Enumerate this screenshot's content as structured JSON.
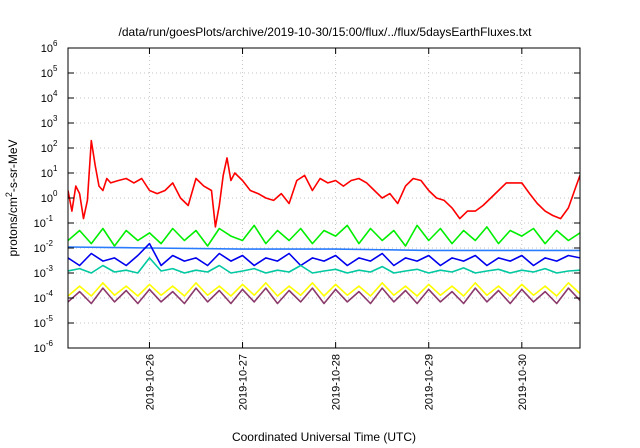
{
  "chart_data": {
    "type": "line",
    "title": "/data/run/goesPlots/archive/2019-10-30/15:00/flux/../flux/5daysEarthFluxes.txt",
    "xlabel": "Coordinated Universal Time (UTC)",
    "ylabel": {
      "prefix": "protons/cm",
      "sup": "2",
      "suffix": "-s-sr-MeV"
    },
    "x_range": [
      "2019-10-25T03:00",
      "2019-10-30T15:00"
    ],
    "x_ticks": [
      {
        "date": "2019-10-26",
        "label": "2019-10-26"
      },
      {
        "date": "2019-10-27",
        "label": "2019-10-27"
      },
      {
        "date": "2019-10-28",
        "label": "2019-10-28"
      },
      {
        "date": "2019-10-29",
        "label": "2019-10-29"
      },
      {
        "date": "2019-10-30",
        "label": "2019-10-30"
      }
    ],
    "y_scale": "log",
    "y_range": [
      1e-06,
      1000000.0
    ],
    "y_ticks": [
      {
        "base": "10",
        "exp": "6"
      },
      {
        "base": "10",
        "exp": "5"
      },
      {
        "base": "10",
        "exp": "4"
      },
      {
        "base": "10",
        "exp": "3"
      },
      {
        "base": "10",
        "exp": "2"
      },
      {
        "base": "10",
        "exp": "1"
      },
      {
        "base": "10",
        "exp": "0"
      },
      {
        "base": "10",
        "exp": "-1"
      },
      {
        "base": "10",
        "exp": "-2"
      },
      {
        "base": "10",
        "exp": "-3"
      },
      {
        "base": "10",
        "exp": "-4"
      },
      {
        "base": "10",
        "exp": "-5"
      },
      {
        "base": "10",
        "exp": "-6"
      }
    ],
    "grid": true,
    "series": [
      {
        "color": "#ff0000",
        "x": [
          "2019-10-25T03:00",
          "2019-10-25T04:00",
          "2019-10-25T05:00",
          "2019-10-25T06:00",
          "2019-10-25T07:00",
          "2019-10-25T08:00",
          "2019-10-25T09:00",
          "2019-10-25T10:00",
          "2019-10-25T11:00",
          "2019-10-25T12:00",
          "2019-10-25T13:00",
          "2019-10-25T14:00",
          "2019-10-25T16:00",
          "2019-10-25T18:00",
          "2019-10-25T20:00",
          "2019-10-25T22:00",
          "2019-10-26T00:00",
          "2019-10-26T02:00",
          "2019-10-26T04:00",
          "2019-10-26T06:00",
          "2019-10-26T08:00",
          "2019-10-26T10:00",
          "2019-10-26T12:00",
          "2019-10-26T14:00",
          "2019-10-26T16:00",
          "2019-10-26T17:00",
          "2019-10-26T18:00",
          "2019-10-26T19:00",
          "2019-10-26T20:00",
          "2019-10-26T21:00",
          "2019-10-26T22:00",
          "2019-10-27T00:00",
          "2019-10-27T02:00",
          "2019-10-27T04:00",
          "2019-10-27T06:00",
          "2019-10-27T08:00",
          "2019-10-27T10:00",
          "2019-10-27T12:00",
          "2019-10-27T14:00",
          "2019-10-27T16:00",
          "2019-10-27T18:00",
          "2019-10-27T20:00",
          "2019-10-27T22:00",
          "2019-10-28T00:00",
          "2019-10-28T02:00",
          "2019-10-28T04:00",
          "2019-10-28T06:00",
          "2019-10-28T08:00",
          "2019-10-28T10:00",
          "2019-10-28T12:00",
          "2019-10-28T14:00",
          "2019-10-28T16:00",
          "2019-10-28T18:00",
          "2019-10-28T20:00",
          "2019-10-28T22:00",
          "2019-10-29T00:00",
          "2019-10-29T02:00",
          "2019-10-29T04:00",
          "2019-10-29T06:00",
          "2019-10-29T08:00",
          "2019-10-29T10:00",
          "2019-10-29T12:00",
          "2019-10-29T14:00",
          "2019-10-29T16:00",
          "2019-10-29T18:00",
          "2019-10-29T20:00",
          "2019-10-29T22:00",
          "2019-10-30T00:00",
          "2019-10-30T02:00",
          "2019-10-30T04:00",
          "2019-10-30T06:00",
          "2019-10-30T08:00",
          "2019-10-30T10:00",
          "2019-10-30T12:00",
          "2019-10-30T14:00",
          "2019-10-30T15:00"
        ],
        "y": [
          2,
          0.3,
          3,
          1.5,
          0.15,
          0.8,
          200,
          20,
          3,
          2,
          6,
          4,
          5,
          6,
          4,
          6,
          2,
          1.5,
          2,
          4,
          1,
          0.5,
          6,
          3,
          2,
          0.07,
          0.5,
          8,
          40,
          5,
          10,
          5,
          2,
          1.5,
          1,
          0.8,
          1.5,
          0.6,
          5,
          8,
          2,
          6,
          4,
          5,
          3,
          5,
          6,
          4,
          2,
          1,
          1.5,
          0.6,
          3,
          6,
          5,
          2,
          1,
          0.8,
          0.4,
          0.15,
          0.3,
          0.3,
          0.5,
          1,
          2,
          4,
          4,
          4,
          1.5,
          0.6,
          0.3,
          0.2,
          0.15,
          0.4,
          3,
          8
        ]
      },
      {
        "color": "#00ee00",
        "x": [
          "2019-10-25T03:00",
          "2019-10-25T06:00",
          "2019-10-25T09:00",
          "2019-10-25T12:00",
          "2019-10-25T15:00",
          "2019-10-25T18:00",
          "2019-10-25T21:00",
          "2019-10-26T00:00",
          "2019-10-26T03:00",
          "2019-10-26T06:00",
          "2019-10-26T09:00",
          "2019-10-26T12:00",
          "2019-10-26T15:00",
          "2019-10-26T18:00",
          "2019-10-26T21:00",
          "2019-10-27T00:00",
          "2019-10-27T03:00",
          "2019-10-27T06:00",
          "2019-10-27T09:00",
          "2019-10-27T12:00",
          "2019-10-27T15:00",
          "2019-10-27T18:00",
          "2019-10-27T21:00",
          "2019-10-28T00:00",
          "2019-10-28T03:00",
          "2019-10-28T06:00",
          "2019-10-28T09:00",
          "2019-10-28T12:00",
          "2019-10-28T15:00",
          "2019-10-28T18:00",
          "2019-10-28T21:00",
          "2019-10-29T00:00",
          "2019-10-29T03:00",
          "2019-10-29T06:00",
          "2019-10-29T09:00",
          "2019-10-29T12:00",
          "2019-10-29T15:00",
          "2019-10-29T18:00",
          "2019-10-29T21:00",
          "2019-10-30T00:00",
          "2019-10-30T03:00",
          "2019-10-30T06:00",
          "2019-10-30T09:00",
          "2019-10-30T12:00",
          "2019-10-30T15:00"
        ],
        "y": [
          0.02,
          0.05,
          0.015,
          0.06,
          0.012,
          0.05,
          0.02,
          0.04,
          0.015,
          0.06,
          0.02,
          0.05,
          0.012,
          0.06,
          0.03,
          0.02,
          0.08,
          0.015,
          0.05,
          0.02,
          0.06,
          0.015,
          0.05,
          0.03,
          0.08,
          0.015,
          0.06,
          0.02,
          0.05,
          0.012,
          0.08,
          0.02,
          0.06,
          0.015,
          0.05,
          0.02,
          0.07,
          0.015,
          0.05,
          0.03,
          0.06,
          0.015,
          0.05,
          0.02,
          0.04
        ]
      },
      {
        "color": "#2a7cff",
        "x": [
          "2019-10-25T03:00",
          "2019-10-26T00:00",
          "2019-10-27T00:00",
          "2019-10-28T00:00",
          "2019-10-29T00:00",
          "2019-10-30T00:00",
          "2019-10-30T15:00"
        ],
        "y": [
          0.011,
          0.01,
          0.009,
          0.009,
          0.008,
          0.008,
          0.008
        ]
      },
      {
        "color": "#0000ee",
        "x": [
          "2019-10-25T03:00",
          "2019-10-25T06:00",
          "2019-10-25T09:00",
          "2019-10-25T12:00",
          "2019-10-25T15:00",
          "2019-10-25T18:00",
          "2019-10-25T21:00",
          "2019-10-26T00:00",
          "2019-10-26T03:00",
          "2019-10-26T06:00",
          "2019-10-26T09:00",
          "2019-10-26T12:00",
          "2019-10-26T15:00",
          "2019-10-26T18:00",
          "2019-10-26T21:00",
          "2019-10-27T00:00",
          "2019-10-27T03:00",
          "2019-10-27T06:00",
          "2019-10-27T09:00",
          "2019-10-27T12:00",
          "2019-10-27T15:00",
          "2019-10-27T18:00",
          "2019-10-27T21:00",
          "2019-10-28T00:00",
          "2019-10-28T03:00",
          "2019-10-28T06:00",
          "2019-10-28T09:00",
          "2019-10-28T12:00",
          "2019-10-28T15:00",
          "2019-10-28T18:00",
          "2019-10-28T21:00",
          "2019-10-29T00:00",
          "2019-10-29T03:00",
          "2019-10-29T06:00",
          "2019-10-29T09:00",
          "2019-10-29T12:00",
          "2019-10-29T15:00",
          "2019-10-29T18:00",
          "2019-10-29T21:00",
          "2019-10-30T00:00",
          "2019-10-30T03:00",
          "2019-10-30T06:00",
          "2019-10-30T09:00",
          "2019-10-30T12:00",
          "2019-10-30T15:00"
        ],
        "y": [
          0.004,
          0.002,
          0.006,
          0.003,
          0.004,
          0.002,
          0.005,
          0.015,
          0.002,
          0.005,
          0.003,
          0.004,
          0.002,
          0.006,
          0.003,
          0.005,
          0.002,
          0.004,
          0.003,
          0.006,
          0.002,
          0.004,
          0.003,
          0.005,
          0.002,
          0.004,
          0.003,
          0.006,
          0.002,
          0.004,
          0.003,
          0.005,
          0.002,
          0.004,
          0.003,
          0.005,
          0.002,
          0.004,
          0.003,
          0.005,
          0.002,
          0.004,
          0.003,
          0.005,
          0.004
        ]
      },
      {
        "color": "#00c8a0",
        "x": [
          "2019-10-25T03:00",
          "2019-10-25T06:00",
          "2019-10-25T09:00",
          "2019-10-25T12:00",
          "2019-10-25T15:00",
          "2019-10-25T18:00",
          "2019-10-25T21:00",
          "2019-10-26T00:00",
          "2019-10-26T03:00",
          "2019-10-26T06:00",
          "2019-10-26T09:00",
          "2019-10-26T12:00",
          "2019-10-26T15:00",
          "2019-10-26T18:00",
          "2019-10-26T21:00",
          "2019-10-27T00:00",
          "2019-10-27T03:00",
          "2019-10-27T06:00",
          "2019-10-27T09:00",
          "2019-10-27T12:00",
          "2019-10-27T15:00",
          "2019-10-27T18:00",
          "2019-10-27T21:00",
          "2019-10-28T00:00",
          "2019-10-28T03:00",
          "2019-10-28T06:00",
          "2019-10-28T09:00",
          "2019-10-28T12:00",
          "2019-10-28T15:00",
          "2019-10-28T18:00",
          "2019-10-28T21:00",
          "2019-10-29T00:00",
          "2019-10-29T03:00",
          "2019-10-29T06:00",
          "2019-10-29T09:00",
          "2019-10-29T12:00",
          "2019-10-29T15:00",
          "2019-10-29T18:00",
          "2019-10-29T21:00",
          "2019-10-30T00:00",
          "2019-10-30T03:00",
          "2019-10-30T06:00",
          "2019-10-30T09:00",
          "2019-10-30T12:00",
          "2019-10-30T15:00"
        ],
        "y": [
          0.0012,
          0.0015,
          0.001,
          0.002,
          0.0011,
          0.0013,
          0.001,
          0.004,
          0.0012,
          0.0015,
          0.001,
          0.0013,
          0.0011,
          0.002,
          0.001,
          0.0012,
          0.0015,
          0.001,
          0.0013,
          0.0011,
          0.002,
          0.001,
          0.0012,
          0.0014,
          0.001,
          0.0013,
          0.0011,
          0.0018,
          0.001,
          0.0012,
          0.0014,
          0.001,
          0.0013,
          0.0011,
          0.0016,
          0.001,
          0.0012,
          0.0014,
          0.001,
          0.0013,
          0.0011,
          0.0015,
          0.001,
          0.0012,
          0.0013
        ]
      },
      {
        "color": "#ffff00",
        "x": [
          "2019-10-25T03:00",
          "2019-10-25T06:00",
          "2019-10-25T09:00",
          "2019-10-25T12:00",
          "2019-10-25T15:00",
          "2019-10-25T18:00",
          "2019-10-25T21:00",
          "2019-10-26T00:00",
          "2019-10-26T03:00",
          "2019-10-26T06:00",
          "2019-10-26T09:00",
          "2019-10-26T12:00",
          "2019-10-26T15:00",
          "2019-10-26T18:00",
          "2019-10-26T21:00",
          "2019-10-27T00:00",
          "2019-10-27T03:00",
          "2019-10-27T06:00",
          "2019-10-27T09:00",
          "2019-10-27T12:00",
          "2019-10-27T15:00",
          "2019-10-27T18:00",
          "2019-10-27T21:00",
          "2019-10-28T00:00",
          "2019-10-28T03:00",
          "2019-10-28T06:00",
          "2019-10-28T09:00",
          "2019-10-28T12:00",
          "2019-10-28T15:00",
          "2019-10-28T18:00",
          "2019-10-28T21:00",
          "2019-10-29T00:00",
          "2019-10-29T03:00",
          "2019-10-29T06:00",
          "2019-10-29T09:00",
          "2019-10-29T12:00",
          "2019-10-29T15:00",
          "2019-10-29T18:00",
          "2019-10-29T21:00",
          "2019-10-30T00:00",
          "2019-10-30T03:00",
          "2019-10-30T06:00",
          "2019-10-30T09:00",
          "2019-10-30T12:00",
          "2019-10-30T15:00"
        ],
        "y": [
          0.00012,
          0.0003,
          0.00012,
          0.0004,
          0.00013,
          0.0003,
          0.00012,
          0.00035,
          0.00013,
          0.0003,
          0.00012,
          0.0004,
          0.00013,
          0.0003,
          0.00012,
          0.00035,
          0.00013,
          0.0004,
          0.00012,
          0.0003,
          0.00013,
          0.0004,
          0.00012,
          0.00035,
          0.00013,
          0.0003,
          0.00012,
          0.0004,
          0.00013,
          0.0003,
          0.00012,
          0.00035,
          0.00013,
          0.0003,
          0.00012,
          0.0004,
          0.00013,
          0.0003,
          0.00012,
          0.00035,
          0.00013,
          0.0003,
          0.00012,
          0.0004,
          0.00015
        ]
      },
      {
        "color": "#8b3a6b",
        "x": [
          "2019-10-25T03:00",
          "2019-10-25T06:00",
          "2019-10-25T09:00",
          "2019-10-25T12:00",
          "2019-10-25T15:00",
          "2019-10-25T18:00",
          "2019-10-25T21:00",
          "2019-10-26T00:00",
          "2019-10-26T03:00",
          "2019-10-26T06:00",
          "2019-10-26T09:00",
          "2019-10-26T12:00",
          "2019-10-26T15:00",
          "2019-10-26T18:00",
          "2019-10-26T21:00",
          "2019-10-27T00:00",
          "2019-10-27T03:00",
          "2019-10-27T06:00",
          "2019-10-27T09:00",
          "2019-10-27T12:00",
          "2019-10-27T15:00",
          "2019-10-27T18:00",
          "2019-10-27T21:00",
          "2019-10-28T00:00",
          "2019-10-28T03:00",
          "2019-10-28T06:00",
          "2019-10-28T09:00",
          "2019-10-28T12:00",
          "2019-10-28T15:00",
          "2019-10-28T18:00",
          "2019-10-28T21:00",
          "2019-10-29T00:00",
          "2019-10-29T03:00",
          "2019-10-29T06:00",
          "2019-10-29T09:00",
          "2019-10-29T12:00",
          "2019-10-29T15:00",
          "2019-10-29T18:00",
          "2019-10-29T21:00",
          "2019-10-30T00:00",
          "2019-10-30T03:00",
          "2019-10-30T06:00",
          "2019-10-30T09:00",
          "2019-10-30T12:00",
          "2019-10-30T15:00"
        ],
        "y": [
          7e-05,
          0.00018,
          6e-05,
          0.00025,
          7e-05,
          0.0002,
          6e-05,
          0.00022,
          7e-05,
          0.00018,
          6e-05,
          0.00025,
          7e-05,
          0.0002,
          6e-05,
          0.00022,
          7e-05,
          0.00025,
          6e-05,
          0.0002,
          7e-05,
          0.00025,
          6e-05,
          0.00022,
          7e-05,
          0.00018,
          6e-05,
          0.00025,
          7e-05,
          0.0002,
          6e-05,
          0.00022,
          7e-05,
          0.00018,
          6e-05,
          0.00025,
          7e-05,
          0.0002,
          6e-05,
          0.00022,
          7e-05,
          0.00018,
          6e-05,
          0.00025,
          8e-05
        ]
      }
    ]
  }
}
